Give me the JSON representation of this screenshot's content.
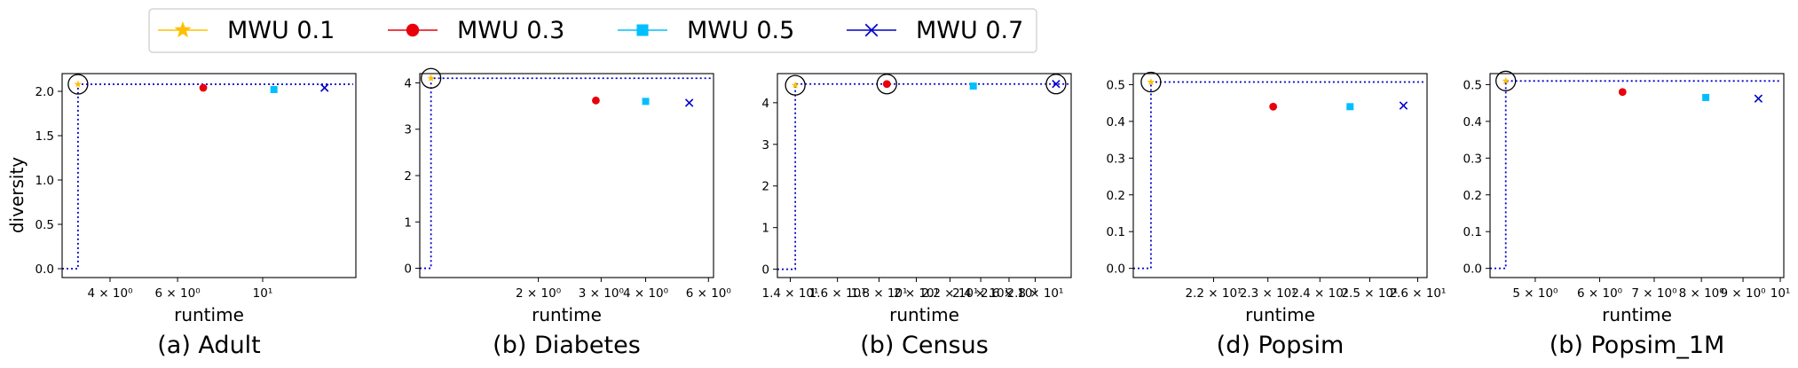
{
  "legend": [
    {
      "label": "MWU 0.1",
      "color": "#FFC000",
      "marker": "star"
    },
    {
      "label": "MWU 0.3",
      "color": "#E8000B",
      "marker": "circle"
    },
    {
      "label": "MWU 0.5",
      "color": "#00BFFF",
      "marker": "square"
    },
    {
      "label": "MWU 0.7",
      "color": "#0000CC",
      "marker": "x"
    }
  ],
  "colors": {
    "frontier": "#0000CC",
    "highlight": "#000000",
    "axis": "#000000"
  },
  "ylabel": "diversity",
  "chart_data": [
    {
      "type": "scatter",
      "caption": "(a) Adult",
      "xlabel": "runtime",
      "ylabel": "diversity",
      "xscale": "log",
      "xlim": [
        3.0,
        17.5
      ],
      "ylim": [
        -0.1,
        2.2
      ],
      "xticks": [
        {
          "v": 4,
          "label": "4 × 10⁰"
        },
        {
          "v": 6,
          "label": "6 × 10⁰"
        },
        {
          "v": 10,
          "label": "10¹"
        }
      ],
      "yticks": [
        {
          "v": 0.0,
          "label": "0.0"
        },
        {
          "v": 0.5,
          "label": "0.5"
        },
        {
          "v": 1.0,
          "label": "1.0"
        },
        {
          "v": 1.5,
          "label": "1.5"
        },
        {
          "v": 2.0,
          "label": "2.0"
        }
      ],
      "frontier_y": 2.08,
      "frontier_x": 3.3,
      "frontier_x0": 3.0,
      "points": [
        {
          "series": "MWU 0.1",
          "x": 3.3,
          "y": 2.08,
          "highlight": true
        },
        {
          "series": "MWU 0.3",
          "x": 7.0,
          "y": 2.04,
          "highlight": false
        },
        {
          "series": "MWU 0.5",
          "x": 10.7,
          "y": 2.02,
          "highlight": false
        },
        {
          "series": "MWU 0.7",
          "x": 14.5,
          "y": 2.04,
          "highlight": false
        }
      ]
    },
    {
      "type": "scatter",
      "caption": "(b) Diabetes",
      "xlabel": "runtime",
      "ylabel": "",
      "xscale": "log",
      "xlim": [
        0.93,
        6.2
      ],
      "ylim": [
        -0.2,
        4.2
      ],
      "xticks": [
        {
          "v": 2,
          "label": "2 × 10⁰"
        },
        {
          "v": 3,
          "label": "3 × 10⁰"
        },
        {
          "v": 4,
          "label": "4 × 10⁰"
        },
        {
          "v": 6,
          "label": "6 × 10⁰"
        }
      ],
      "yticks": [
        {
          "v": 0,
          "label": "0"
        },
        {
          "v": 1,
          "label": "1"
        },
        {
          "v": 2,
          "label": "2"
        },
        {
          "v": 3,
          "label": "3"
        },
        {
          "v": 4,
          "label": "4"
        }
      ],
      "frontier_y": 4.1,
      "frontier_x": 1.0,
      "frontier_x0": 0.93,
      "points": [
        {
          "series": "MWU 0.1",
          "x": 1.0,
          "y": 4.1,
          "highlight": true
        },
        {
          "series": "MWU 0.3",
          "x": 2.9,
          "y": 3.62,
          "highlight": false
        },
        {
          "series": "MWU 0.5",
          "x": 4.0,
          "y": 3.6,
          "highlight": false
        },
        {
          "series": "MWU 0.7",
          "x": 5.3,
          "y": 3.57,
          "highlight": false
        }
      ]
    },
    {
      "type": "scatter",
      "caption": "(b) Census",
      "xlabel": "runtime",
      "ylabel": "",
      "xscale": "log",
      "xlim": [
        13.5,
        31.0
      ],
      "ylim": [
        -0.2,
        4.7
      ],
      "xticks": [
        {
          "v": 14,
          "label": "1.4 × 10¹"
        },
        {
          "v": 16,
          "label": "1.6 × 10¹"
        },
        {
          "v": 18,
          "label": "1.8 × 10¹"
        },
        {
          "v": 20,
          "label": "2 × 10¹"
        },
        {
          "v": 22,
          "label": "2.2 × 10¹"
        },
        {
          "v": 24,
          "label": "2.4 × 10¹"
        },
        {
          "v": 26,
          "label": "2.6 × 10¹"
        },
        {
          "v": 28,
          "label": "2.8 × 10¹"
        }
      ],
      "yticks": [
        {
          "v": 0,
          "label": "0"
        },
        {
          "v": 1,
          "label": "1"
        },
        {
          "v": 2,
          "label": "2"
        },
        {
          "v": 3,
          "label": "3"
        },
        {
          "v": 4,
          "label": "4"
        }
      ],
      "frontier_y": 4.45,
      "frontier_x": 14.2,
      "frontier_x0": 13.5,
      "points": [
        {
          "series": "MWU 0.1",
          "x": 14.2,
          "y": 4.42,
          "highlight": true
        },
        {
          "series": "MWU 0.3",
          "x": 18.4,
          "y": 4.45,
          "highlight": true
        },
        {
          "series": "MWU 0.5",
          "x": 23.5,
          "y": 4.4,
          "highlight": false
        },
        {
          "series": "MWU 0.7",
          "x": 29.7,
          "y": 4.45,
          "highlight": true
        }
      ]
    },
    {
      "type": "scatter",
      "caption": "(d) Popsim",
      "xlabel": "runtime",
      "ylabel": "",
      "xscale": "log",
      "xlim": [
        20.6,
        26.2
      ],
      "ylim": [
        -0.025,
        0.53
      ],
      "xticks": [
        {
          "v": 22,
          "label": "2.2 × 10¹"
        },
        {
          "v": 23,
          "label": "2.3 × 10¹"
        },
        {
          "v": 24,
          "label": "2.4 × 10¹"
        },
        {
          "v": 25,
          "label": "2.5 × 10¹"
        },
        {
          "v": 26,
          "label": "2.6 × 10¹"
        }
      ],
      "yticks": [
        {
          "v": 0.0,
          "label": "0.0"
        },
        {
          "v": 0.1,
          "label": "0.1"
        },
        {
          "v": 0.2,
          "label": "0.2"
        },
        {
          "v": 0.3,
          "label": "0.3"
        },
        {
          "v": 0.4,
          "label": "0.4"
        },
        {
          "v": 0.5,
          "label": "0.5"
        }
      ],
      "frontier_y": 0.507,
      "frontier_x": 20.9,
      "frontier_x0": 20.6,
      "points": [
        {
          "series": "MWU 0.1",
          "x": 20.9,
          "y": 0.507,
          "highlight": true
        },
        {
          "series": "MWU 0.3",
          "x": 23.1,
          "y": 0.44,
          "highlight": false
        },
        {
          "series": "MWU 0.5",
          "x": 24.6,
          "y": 0.44,
          "highlight": false
        },
        {
          "series": "MWU 0.7",
          "x": 25.7,
          "y": 0.443,
          "highlight": false
        }
      ]
    },
    {
      "type": "scatter",
      "caption": "(b) Popsim_1M",
      "xlabel": "runtime",
      "ylabel": "",
      "xscale": "log",
      "xlim": [
        4.4,
        10.1
      ],
      "ylim": [
        -0.025,
        0.53
      ],
      "xticks": [
        {
          "v": 5,
          "label": "5 × 10⁰"
        },
        {
          "v": 6,
          "label": "6 × 10⁰"
        },
        {
          "v": 7,
          "label": "7 × 10⁰"
        },
        {
          "v": 8,
          "label": "8 × 10⁰"
        },
        {
          "v": 9,
          "label": "9 × 10⁰"
        },
        {
          "v": 10,
          "label": "10¹"
        }
      ],
      "yticks": [
        {
          "v": 0.0,
          "label": "0.0"
        },
        {
          "v": 0.1,
          "label": "0.1"
        },
        {
          "v": 0.2,
          "label": "0.2"
        },
        {
          "v": 0.3,
          "label": "0.3"
        },
        {
          "v": 0.4,
          "label": "0.4"
        },
        {
          "v": 0.5,
          "label": "0.5"
        }
      ],
      "frontier_y": 0.51,
      "frontier_x": 4.6,
      "frontier_x0": 4.4,
      "points": [
        {
          "series": "MWU 0.1",
          "x": 4.6,
          "y": 0.51,
          "highlight": true
        },
        {
          "series": "MWU 0.3",
          "x": 6.4,
          "y": 0.48,
          "highlight": false
        },
        {
          "series": "MWU 0.5",
          "x": 8.1,
          "y": 0.465,
          "highlight": false
        },
        {
          "series": "MWU 0.7",
          "x": 9.4,
          "y": 0.462,
          "highlight": false
        }
      ]
    }
  ]
}
